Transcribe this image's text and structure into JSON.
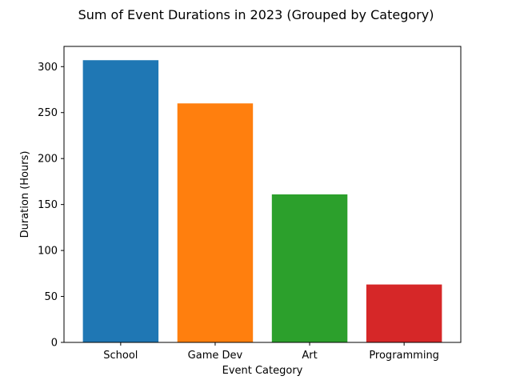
{
  "chart_data": {
    "type": "bar",
    "title": "Sum of Event Durations in 2023 (Grouped by Category)",
    "xlabel": "Event Category",
    "ylabel": "Duration (Hours)",
    "categories": [
      "School",
      "Game Dev",
      "Art",
      "Programming"
    ],
    "values": [
      307,
      260,
      161,
      63
    ],
    "colors": [
      "#1f77b4",
      "#ff7f0e",
      "#2ca02c",
      "#d62728"
    ],
    "ylim": [
      0,
      322
    ],
    "yticks": [
      0,
      50,
      100,
      150,
      200,
      250,
      300
    ],
    "grid": false,
    "legend": "none"
  }
}
